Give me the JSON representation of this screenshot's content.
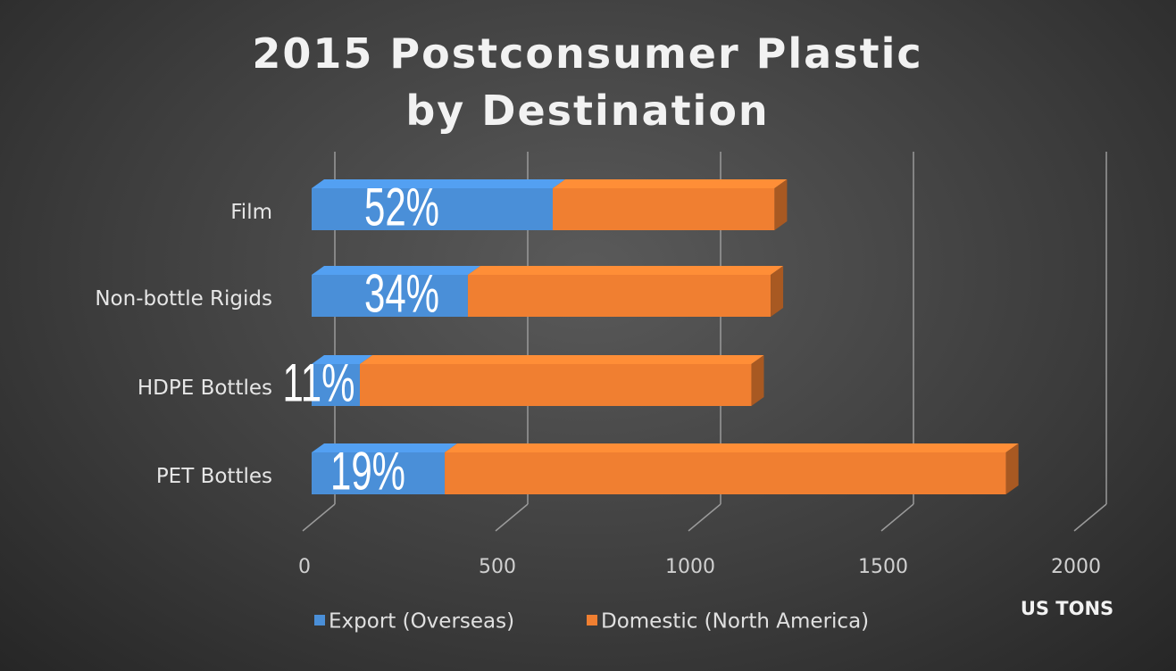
{
  "chart_data": {
    "type": "bar3d_stacked_horizontal",
    "title": "2015 Postconsumer Plastic by Destination",
    "categories": [
      "Film",
      "Non-bottle Rigids",
      "HDPE Bottles",
      "PET Bottles"
    ],
    "series": [
      {
        "name": "Export (Overseas)",
        "color": "#4a8fd8",
        "values": [
          625,
          405,
          125,
          345
        ]
      },
      {
        "name": "Domestic (North America)",
        "color": "#f07f31",
        "values": [
          575,
          785,
          1015,
          1455
        ]
      }
    ],
    "annotations": [
      "52%",
      "34%",
      "11%",
      "19%"
    ],
    "xlim": [
      0,
      2000
    ],
    "xticks": [
      0,
      500,
      1000,
      1500,
      2000
    ],
    "x_label": "US TONS",
    "grid": true,
    "legend": "bottom"
  }
}
